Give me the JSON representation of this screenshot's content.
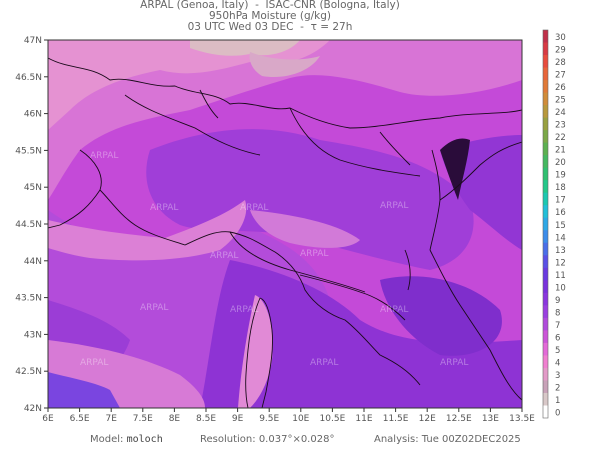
{
  "header": {
    "line1": "ARPAL (Genoa, Italy)  -  ISAC-CNR (Bologna, Italy)",
    "line2": "950hPa Moisture (g/kg)",
    "line3": "03 UTC Wed 03 DEC  -  τ = 27h"
  },
  "map": {
    "lat_labels": [
      "47N",
      "46.5N",
      "46N",
      "45.5N",
      "45N",
      "44.5N",
      "44N",
      "43.5N",
      "43N",
      "42.5N",
      "42N"
    ],
    "lon_labels": [
      "6E",
      "6.5E",
      "7E",
      "7.5E",
      "8E",
      "8.5E",
      "9E",
      "9.5E",
      "10E",
      "10.5E",
      "11E",
      "11.5E",
      "12E",
      "12.5E",
      "13E",
      "13.5E"
    ],
    "watermark": "ARPAL",
    "extent": {
      "lon_min": 6,
      "lon_max": 13.5,
      "lat_min": 42,
      "lat_max": 47
    }
  },
  "colorbar": {
    "labels": [
      "30",
      "29",
      "28",
      "27",
      "26",
      "25",
      "24",
      "23",
      "22",
      "21",
      "20",
      "19",
      "18",
      "17",
      "16",
      "15",
      "14",
      "13",
      "12",
      "11",
      "10",
      "9",
      "8",
      "7",
      "6",
      "5",
      "4",
      "3",
      "2",
      "1",
      "0"
    ],
    "colors": [
      "#ffffff",
      "#d8c8c8",
      "#c8a2b8",
      "#e39ac8",
      "#f07fd0",
      "#e36ad8",
      "#cc55d8",
      "#b04bdc",
      "#9a3fe0",
      "#8a36de",
      "#7a32dc",
      "#6a3ae0",
      "#5a50e6",
      "#4a6ee8",
      "#3c8cea",
      "#2ea8e6",
      "#22bfd8",
      "#1cc8b0",
      "#24c88a",
      "#30c070",
      "#44b860",
      "#5cb050",
      "#7aa848",
      "#98a040",
      "#b8983c",
      "#d08c3a",
      "#e07a38",
      "#e8653a",
      "#e84c3e",
      "#d83a44",
      "#c0304a"
    ]
  },
  "footer": {
    "model_label": "Model:",
    "model_value": "moloch",
    "resolution_label": "Resolution:",
    "resolution_value": "0.037°×0.028°",
    "analysis_label": "Analysis:",
    "analysis_value": "Tue 00Z02DEC2025"
  }
}
